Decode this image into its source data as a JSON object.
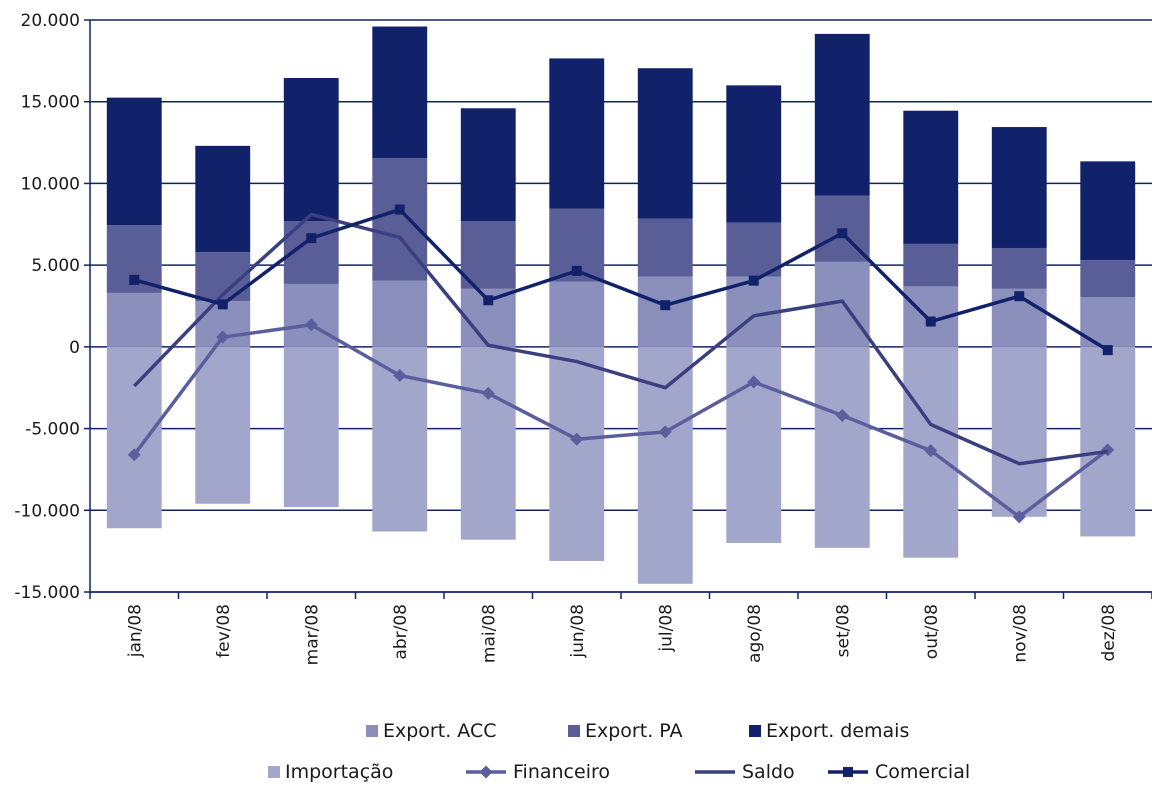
{
  "chart_data": {
    "type": "bar",
    "subtype": "stacked-bar-with-lines",
    "title": "",
    "xlabel": "",
    "ylabel": "",
    "ylim": [
      -15000,
      20000
    ],
    "yticks": [
      20000,
      15000,
      10000,
      5000,
      0,
      -5000,
      -10000,
      -15000
    ],
    "ytick_labels": [
      "20.000",
      "15.000",
      "10.000",
      "5.000",
      "0",
      "-5.000",
      "-10.000",
      "-15.000"
    ],
    "grid": "horizontal",
    "legend_position": "bottom",
    "categories": [
      "jan/08",
      "fev/08",
      "mar/08",
      "abr/08",
      "mai/08",
      "jun/08",
      "jul/08",
      "ago/08",
      "set/08",
      "out/08",
      "nov/08",
      "dez/08"
    ],
    "bar_series": [
      {
        "name": "Export. ACC",
        "color": "#8a8fbc",
        "values": [
          3300,
          2800,
          3850,
          4050,
          3550,
          4000,
          4300,
          4300,
          5200,
          3700,
          3550,
          3050
        ]
      },
      {
        "name": "Export. PA",
        "color": "#5a5e97",
        "values": [
          4150,
          3000,
          3850,
          7500,
          4150,
          4450,
          3550,
          3300,
          4050,
          2600,
          2500,
          2250
        ]
      },
      {
        "name": "Export. demais",
        "color": "#12226a",
        "values": [
          7800,
          6500,
          8750,
          8050,
          6900,
          9200,
          9200,
          8400,
          9900,
          8150,
          7400,
          6050
        ]
      },
      {
        "name": "Importação",
        "color": "#a3a6cb",
        "values": [
          -11100,
          -9600,
          -9800,
          -11300,
          -11800,
          -13100,
          -14500,
          -12000,
          -12300,
          -12900,
          -10400,
          -11600
        ]
      }
    ],
    "line_series": [
      {
        "name": "Financeiro",
        "color": "#5a5e9c",
        "marker": "diamond",
        "values": [
          -6600,
          600,
          1350,
          -1750,
          -2850,
          -5650,
          -5200,
          -2150,
          -4200,
          -6350,
          -10400,
          -6300
        ]
      },
      {
        "name": "Saldo",
        "color": "#3b3f80",
        "marker": "none",
        "values": [
          -2400,
          3200,
          8100,
          6700,
          100,
          -900,
          -2500,
          1900,
          2800,
          -4750,
          -7150,
          -6400
        ]
      },
      {
        "name": "Comercial",
        "color": "#12226a",
        "marker": "square",
        "values": [
          4100,
          2600,
          6650,
          8400,
          2850,
          4650,
          2550,
          4050,
          6950,
          1550,
          3100,
          -200
        ]
      }
    ]
  }
}
